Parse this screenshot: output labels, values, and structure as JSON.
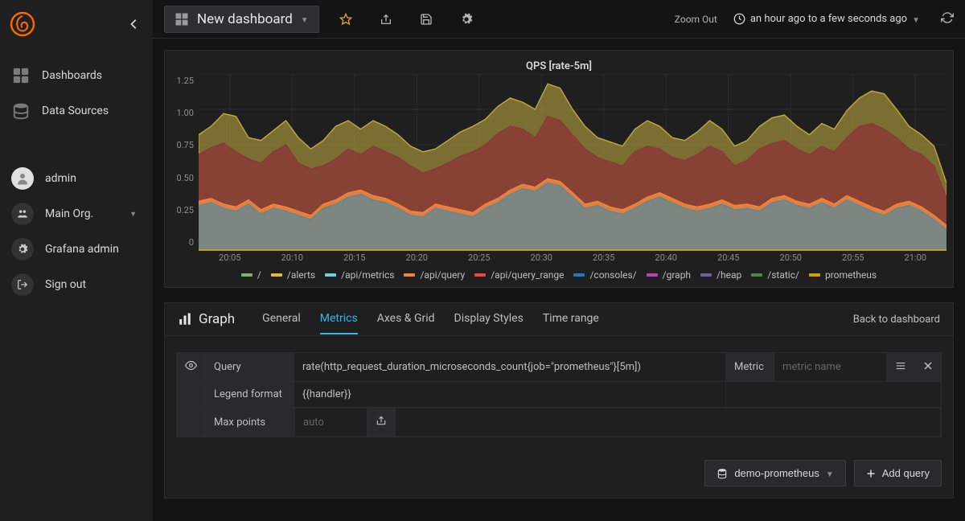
{
  "sidebar": {
    "nav": [
      {
        "label": "Dashboards",
        "icon": "dashboards-icon"
      },
      {
        "label": "Data Sources",
        "icon": "datasources-icon"
      }
    ],
    "user": "admin",
    "org": "Main Org.",
    "admin_label": "Grafana admin",
    "signout_label": "Sign out"
  },
  "topbar": {
    "dashboard_title": "New dashboard",
    "zoom_out": "Zoom Out",
    "timerange": "an hour ago to a few seconds ago"
  },
  "chart": {
    "title": "QPS [rate-5m]",
    "type": "area-stacked",
    "background_color": "#1f1f1f",
    "grid_color": "#2c2c2c",
    "ylim": [
      0,
      1.25
    ],
    "yticks": [
      "1.25",
      "1.00",
      "0.75",
      "0.50",
      "0.25",
      "0"
    ],
    "xticks": [
      "20:05",
      "20:10",
      "20:15",
      "20:20",
      "20:25",
      "20:30",
      "20:35",
      "20:40",
      "20:45",
      "20:50",
      "20:55",
      "21:00"
    ],
    "series": [
      {
        "name": "/",
        "color": "#7eb26d"
      },
      {
        "name": "/alerts",
        "color": "#eab839"
      },
      {
        "name": "/api/metrics",
        "color": "#6ed0e0"
      },
      {
        "name": "/api/query",
        "color": "#ef843c"
      },
      {
        "name": "/api/query_range",
        "color": "#e24d42"
      },
      {
        "name": "/consoles/",
        "color": "#1f78c1"
      },
      {
        "name": "/graph",
        "color": "#ba43a9"
      },
      {
        "name": "/heap",
        "color": "#705da0"
      },
      {
        "name": "/static/",
        "color": "#508642"
      },
      {
        "name": "prometheus",
        "color": "#cca300"
      }
    ],
    "stack_layers": [
      {
        "color": "#5a8a99",
        "fill": "#5a8a99",
        "opacity": 0.75,
        "points": [
          0.32,
          0.34,
          0.3,
          0.28,
          0.33,
          0.26,
          0.3,
          0.28,
          0.25,
          0.22,
          0.3,
          0.33,
          0.38,
          0.4,
          0.36,
          0.34,
          0.3,
          0.25,
          0.24,
          0.3,
          0.28,
          0.26,
          0.24,
          0.3,
          0.34,
          0.4,
          0.44,
          0.42,
          0.48,
          0.46,
          0.38,
          0.3,
          0.32,
          0.28,
          0.26,
          0.3,
          0.35,
          0.38,
          0.34,
          0.3,
          0.28,
          0.3,
          0.33,
          0.29,
          0.3,
          0.28,
          0.34,
          0.36,
          0.32,
          0.3,
          0.34,
          0.3,
          0.36,
          0.32,
          0.28,
          0.25,
          0.3,
          0.32,
          0.28,
          0.22,
          0.15
        ]
      },
      {
        "color": "#ef843c",
        "fill": "#ef843c",
        "opacity": 0.9,
        "points": [
          0.35,
          0.37,
          0.33,
          0.31,
          0.36,
          0.29,
          0.33,
          0.31,
          0.28,
          0.25,
          0.33,
          0.36,
          0.41,
          0.43,
          0.39,
          0.37,
          0.33,
          0.28,
          0.27,
          0.33,
          0.31,
          0.29,
          0.27,
          0.33,
          0.37,
          0.43,
          0.47,
          0.45,
          0.51,
          0.49,
          0.41,
          0.33,
          0.35,
          0.31,
          0.29,
          0.33,
          0.38,
          0.41,
          0.37,
          0.33,
          0.31,
          0.33,
          0.36,
          0.32,
          0.33,
          0.31,
          0.37,
          0.39,
          0.35,
          0.33,
          0.37,
          0.33,
          0.39,
          0.35,
          0.31,
          0.28,
          0.33,
          0.35,
          0.31,
          0.25,
          0.18
        ]
      },
      {
        "color": "#8b3a36",
        "fill": "#8b3a36",
        "opacity": 0.85,
        "points": [
          0.68,
          0.73,
          0.76,
          0.7,
          0.65,
          0.62,
          0.7,
          0.75,
          0.62,
          0.58,
          0.6,
          0.65,
          0.72,
          0.68,
          0.74,
          0.7,
          0.66,
          0.6,
          0.55,
          0.58,
          0.62,
          0.67,
          0.7,
          0.75,
          0.83,
          0.88,
          0.86,
          0.8,
          0.95,
          0.92,
          0.82,
          0.72,
          0.66,
          0.63,
          0.6,
          0.7,
          0.74,
          0.72,
          0.66,
          0.64,
          0.68,
          0.74,
          0.7,
          0.6,
          0.64,
          0.72,
          0.76,
          0.78,
          0.72,
          0.68,
          0.74,
          0.7,
          0.8,
          0.88,
          0.9,
          0.86,
          0.8,
          0.72,
          0.68,
          0.6,
          0.38
        ]
      },
      {
        "color": "#c0a83a",
        "fill": "#9a8a3a",
        "opacity": 0.75,
        "points": [
          0.82,
          0.88,
          0.97,
          0.95,
          0.8,
          0.78,
          0.85,
          0.92,
          0.8,
          0.72,
          0.78,
          0.88,
          0.92,
          0.86,
          0.92,
          0.88,
          0.82,
          0.74,
          0.7,
          0.72,
          0.78,
          0.84,
          0.88,
          0.93,
          1.02,
          1.08,
          1.05,
          1.0,
          1.18,
          1.15,
          1.0,
          0.88,
          0.8,
          0.77,
          0.74,
          0.86,
          0.92,
          0.88,
          0.8,
          0.78,
          0.84,
          0.92,
          0.86,
          0.74,
          0.78,
          0.88,
          0.94,
          0.96,
          0.88,
          0.82,
          0.9,
          0.86,
          0.99,
          1.08,
          1.13,
          1.11,
          1.0,
          0.88,
          0.82,
          0.74,
          0.48
        ]
      }
    ]
  },
  "editor": {
    "title": "Graph",
    "tabs": [
      "General",
      "Metrics",
      "Axes & Grid",
      "Display Styles",
      "Time range"
    ],
    "active_tab": 1,
    "back_label": "Back to dashboard",
    "rows": {
      "query_label": "Query",
      "query_value": "rate(http_request_duration_microseconds_count{job=\"prometheus\"}[5m])",
      "metric_label": "Metric",
      "metric_placeholder": "metric name",
      "legend_label": "Legend format",
      "legend_value": "{{handler}}",
      "maxpoints_label": "Max points",
      "maxpoints_placeholder": "auto"
    },
    "footer": {
      "datasource": "demo-prometheus",
      "add_query": "Add query"
    }
  }
}
